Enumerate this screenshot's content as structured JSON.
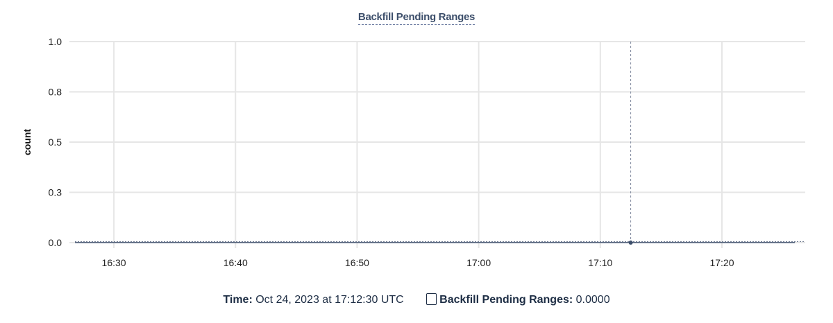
{
  "chart_data": {
    "type": "line",
    "title": "Backfill Pending Ranges",
    "ylabel": "count",
    "xlabel": "",
    "ylim": [
      0,
      1.0
    ],
    "yticks": [
      {
        "value": 0,
        "label": "0.0"
      },
      {
        "value": 0.25,
        "label": "0.3"
      },
      {
        "value": 0.5,
        "label": "0.5"
      },
      {
        "value": 0.75,
        "label": "0.8"
      },
      {
        "value": 1.0,
        "label": "1.0"
      }
    ],
    "xlim": [
      "16:26:48",
      "17:26:51"
    ],
    "xticks": [
      "16:30",
      "16:40",
      "16:50",
      "17:00",
      "17:10",
      "17:20"
    ],
    "grid": true,
    "series": [
      {
        "name": "Backfill Pending Ranges",
        "color": "#3d4f6b",
        "x": [
          "16:26:48",
          "17:12:30",
          "17:26:00"
        ],
        "y": [
          0,
          0,
          0
        ]
      }
    ],
    "hover": {
      "x": "17:12:30",
      "y": 0
    }
  },
  "legend": {
    "time_label": "Time:",
    "time_value": "Oct 24, 2023 at 17:12:30 UTC",
    "series_label": "Backfill Pending Ranges:",
    "series_value": "0.0000"
  }
}
